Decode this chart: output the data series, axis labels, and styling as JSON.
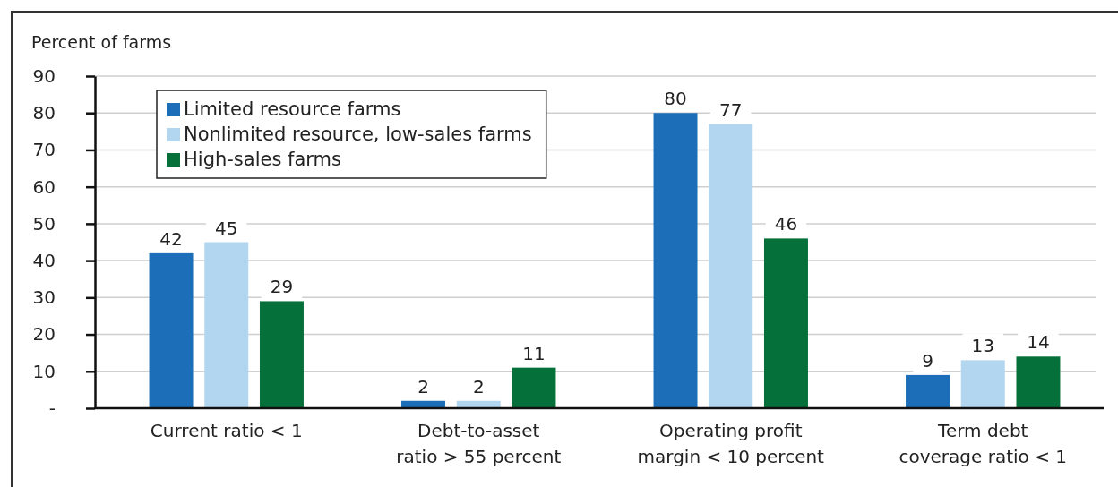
{
  "chart_data": {
    "type": "bar",
    "ylabel": "Percent of farms",
    "categories": [
      "Current ratio < 1",
      "Debt-to-asset ratio > 55 percent",
      "Operating profit margin < 10 percent",
      "Term debt coverage ratio < 1"
    ],
    "series": [
      {
        "name": "Limited resource farms",
        "color": "#1b6eb7",
        "values": [
          42,
          2,
          80,
          9
        ]
      },
      {
        "name": "Nonlimited resource, low-sales farms",
        "color": "#b3d6f0",
        "values": [
          45,
          2,
          77,
          13
        ]
      },
      {
        "name": "High-sales farms",
        "color": "#06703a",
        "values": [
          29,
          11,
          46,
          14
        ]
      }
    ],
    "ylim": [
      0,
      90
    ],
    "yticks": [
      {
        "value": 0,
        "label": "-"
      },
      10,
      20,
      30,
      40,
      50,
      60,
      70,
      80,
      90
    ],
    "grid": "y",
    "legend": "top left",
    "data_labels": true
  }
}
